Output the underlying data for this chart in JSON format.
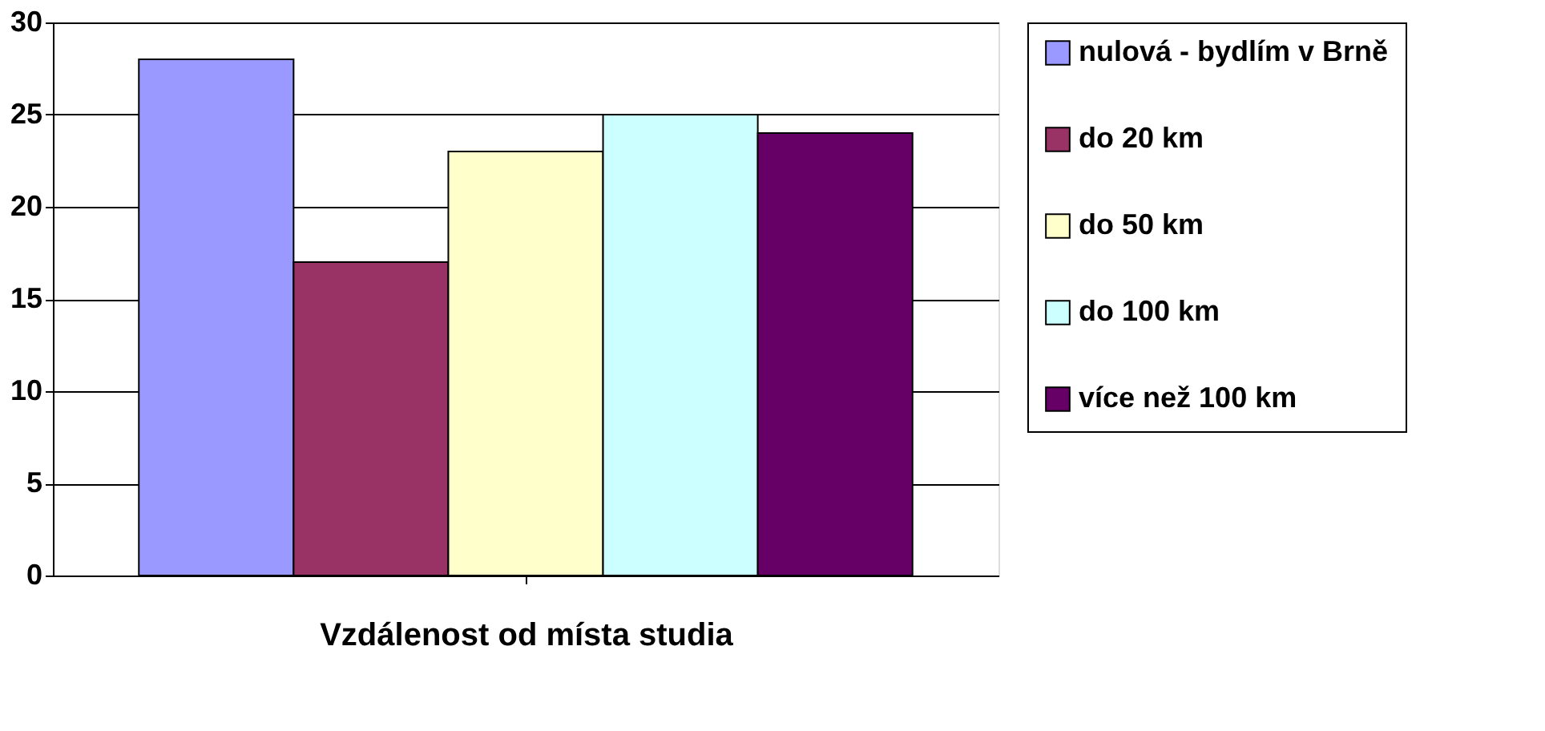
{
  "chart_data": {
    "type": "bar",
    "xlabel": "Vzdálenost od místa studia",
    "categories": [
      null
    ],
    "series": [
      {
        "name": "nulová - bydlím v Brně",
        "color": "#9999ff",
        "values": [
          28
        ]
      },
      {
        "name": "do 20 km",
        "color": "#993366",
        "values": [
          17
        ]
      },
      {
        "name": "do 50 km",
        "color": "#ffffcc",
        "values": [
          23
        ]
      },
      {
        "name": "do 100 km",
        "color": "#ccffff",
        "values": [
          25
        ]
      },
      {
        "name": "více než 100 km",
        "color": "#660066",
        "values": [
          24
        ]
      }
    ],
    "ylim": [
      0,
      30
    ],
    "yticks": [
      0,
      5,
      10,
      15,
      20,
      25,
      30
    ],
    "grid": "y",
    "legend": "right"
  }
}
